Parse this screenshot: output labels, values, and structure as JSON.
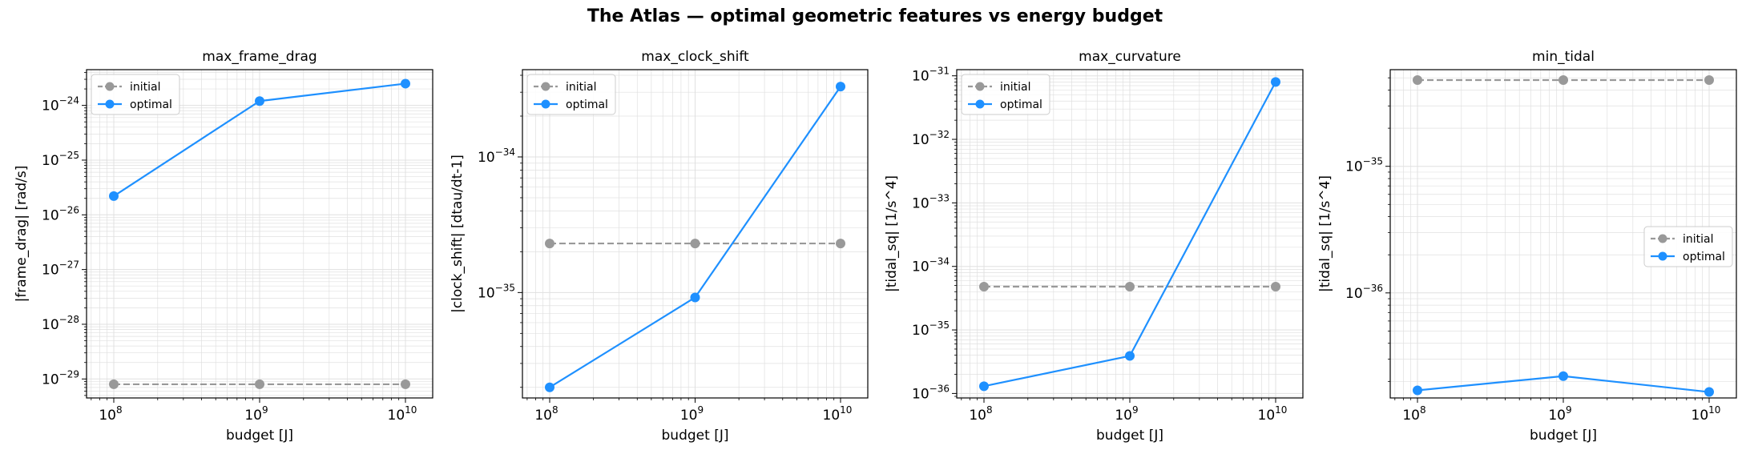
{
  "figure": {
    "suptitle": "The Atlas — optimal geometric features vs energy budget"
  },
  "colors": {
    "initial": "#999999",
    "optimal": "#1e90ff",
    "grid": "#e0e0e0",
    "axes": "#000000"
  },
  "chart_data": [
    {
      "type": "line",
      "title": "max_frame_drag",
      "xlabel": "budget [J]",
      "ylabel": "|frame_drag| [rad/s]",
      "xscale": "log",
      "yscale": "log",
      "x": [
        100000000,
        1000000000,
        10000000000
      ],
      "xticks": [
        {
          "base": "10",
          "exp": "8"
        },
        {
          "base": "10",
          "exp": "9"
        },
        {
          "base": "10",
          "exp": "10"
        }
      ],
      "ylim": [
        4.5e-30,
        4.5e-24
      ],
      "yticks": [
        {
          "v": 1e-29,
          "exp": "−29"
        },
        {
          "v": 1e-28,
          "exp": "−28"
        },
        {
          "v": 1e-27,
          "exp": "−27"
        },
        {
          "v": 1e-26,
          "exp": "−26"
        },
        {
          "v": 1e-25,
          "exp": "−25"
        },
        {
          "v": 1e-24,
          "exp": "−24"
        }
      ],
      "grid": true,
      "legend": "upper-left",
      "series": [
        {
          "name": "initial",
          "values": [
            8e-30,
            8e-30,
            8e-30
          ],
          "style": "dashed"
        },
        {
          "name": "optimal",
          "values": [
            2.2e-26,
            1.2e-24,
            2.5e-24
          ],
          "style": "solid"
        }
      ]
    },
    {
      "type": "line",
      "title": "max_clock_shift",
      "xlabel": "budget [J]",
      "ylabel": "|clock_shift| [dtau/dt-1]",
      "xscale": "log",
      "yscale": "log",
      "x": [
        100000000,
        1000000000,
        10000000000
      ],
      "xticks": [
        {
          "base": "10",
          "exp": "8"
        },
        {
          "base": "10",
          "exp": "9"
        },
        {
          "base": "10",
          "exp": "10"
        }
      ],
      "ylim": [
        1.67e-36,
        4.4e-34
      ],
      "yticks": [
        {
          "v": 1e-35,
          "exp": "−35"
        },
        {
          "v": 1e-34,
          "exp": "−34"
        }
      ],
      "grid": true,
      "legend": "upper-left",
      "series": [
        {
          "name": "initial",
          "values": [
            2.3e-35,
            2.3e-35,
            2.3e-35
          ],
          "style": "dashed"
        },
        {
          "name": "optimal",
          "values": [
            2e-36,
            9.2e-36,
            3.3e-34
          ],
          "style": "solid"
        }
      ]
    },
    {
      "type": "line",
      "title": "max_curvature",
      "xlabel": "budget [J]",
      "ylabel": "|tidal_sq| [1/s^4]",
      "xscale": "log",
      "yscale": "log",
      "x": [
        100000000,
        1000000000,
        10000000000
      ],
      "xticks": [
        {
          "base": "10",
          "exp": "8"
        },
        {
          "base": "10",
          "exp": "9"
        },
        {
          "base": "10",
          "exp": "10"
        }
      ],
      "ylim": [
        8.5e-37,
        1.25e-31
      ],
      "yticks": [
        {
          "v": 1e-36,
          "exp": "−36"
        },
        {
          "v": 1e-35,
          "exp": "−35"
        },
        {
          "v": 1e-34,
          "exp": "−34"
        },
        {
          "v": 1e-33,
          "exp": "−33"
        },
        {
          "v": 1e-32,
          "exp": "−32"
        },
        {
          "v": 1e-31,
          "exp": "−31"
        }
      ],
      "grid": true,
      "legend": "upper-left",
      "series": [
        {
          "name": "initial",
          "values": [
            4.8e-35,
            4.8e-35,
            4.8e-35
          ],
          "style": "dashed"
        },
        {
          "name": "optimal",
          "values": [
            1.3e-36,
            3.9e-36,
            8e-32
          ],
          "style": "solid"
        }
      ]
    },
    {
      "type": "line",
      "title": "min_tidal",
      "xlabel": "budget [J]",
      "ylabel": "|tidal_sq| [1/s^4]",
      "xscale": "log",
      "yscale": "log",
      "x": [
        100000000,
        1000000000,
        10000000000
      ],
      "xticks": [
        {
          "base": "10",
          "exp": "8"
        },
        {
          "base": "10",
          "exp": "9"
        },
        {
          "base": "10",
          "exp": "10"
        }
      ],
      "ylim": [
        1.48e-37,
        5.8e-35
      ],
      "yticks": [
        {
          "v": 1e-36,
          "exp": "−36"
        },
        {
          "v": 1e-35,
          "exp": "−35"
        }
      ],
      "grid": true,
      "legend": "center-right",
      "series": [
        {
          "name": "initial",
          "values": [
            4.8e-35,
            4.8e-35,
            4.8e-35
          ],
          "style": "dashed"
        },
        {
          "name": "optimal",
          "values": [
            1.7e-37,
            2.2e-37,
            1.65e-37
          ],
          "style": "solid"
        }
      ]
    }
  ]
}
